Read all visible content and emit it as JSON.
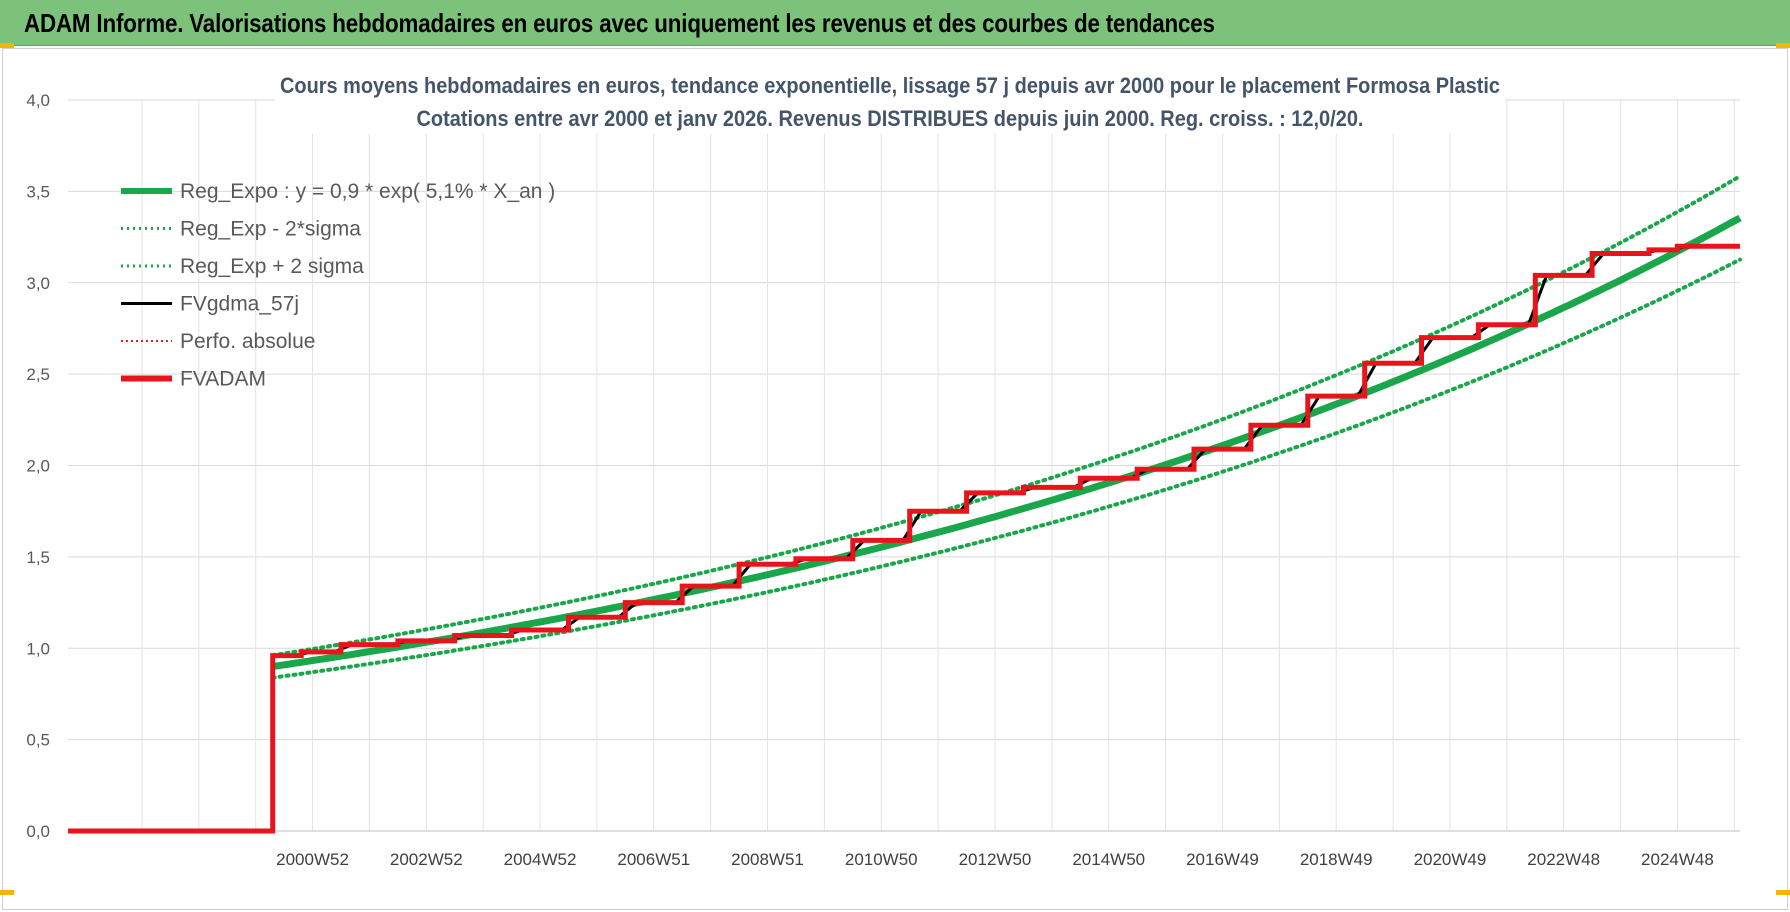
{
  "header": {
    "title": "ADAM Informe. Valorisations hebdomadaires en euros avec uniquement les revenus et des courbes de tendances"
  },
  "chart_data": {
    "type": "line",
    "title": "Cours moyens hebdomadaires en euros, tendance exponentielle, lissage 57 j depuis avr 2000 pour le placement Formosa Plastic",
    "subtitle": "Cotations entre avr 2000 et janv 2026. Revenus DISTRIBUES depuis juin 2000. Reg. croiss. : 12,0/20.",
    "xlabel": "",
    "ylabel": "",
    "ylim": [
      0,
      4
    ],
    "yticks": [
      "0,0",
      "0,5",
      "1,0",
      "1,5",
      "2,0",
      "2,5",
      "3,0",
      "3,5",
      "4,0"
    ],
    "xlim": [
      1996.7,
      2026.1
    ],
    "xticks": [
      {
        "label": "2000W52",
        "year": 2001.0
      },
      {
        "label": "2002W52",
        "year": 2003.0
      },
      {
        "label": "2004W52",
        "year": 2005.0
      },
      {
        "label": "2006W51",
        "year": 2007.0
      },
      {
        "label": "2008W51",
        "year": 2009.0
      },
      {
        "label": "2010W50",
        "year": 2011.0
      },
      {
        "label": "2012W50",
        "year": 2013.0
      },
      {
        "label": "2014W50",
        "year": 2015.0
      },
      {
        "label": "2016W49",
        "year": 2017.0
      },
      {
        "label": "2018W49",
        "year": 2019.0
      },
      {
        "label": "2020W49",
        "year": 2021.0
      },
      {
        "label": "2022W48",
        "year": 2023.0
      },
      {
        "label": "2024W48",
        "year": 2025.0
      }
    ],
    "grid": true,
    "legend_position": "top-left",
    "start_year": 2000.3,
    "end_year": 2026.1,
    "regression": {
      "a": 0.9,
      "rate": 0.051
    },
    "sigma_factor": 0.068,
    "series": [
      {
        "name": "Reg_Expo : y = 0,9 * exp( 5,1% *  X_an )",
        "style": "solid-thick",
        "color": "#1aa64a"
      },
      {
        "name": "Reg_Exp - 2*sigma",
        "style": "dotted",
        "color": "#1aa64a"
      },
      {
        "name": "Reg_Exp + 2 sigma",
        "style": "dotted",
        "color": "#1aa64a"
      },
      {
        "name": "FVgdma_57j",
        "style": "solid",
        "color": "#000000"
      },
      {
        "name": "Perfo. absolue",
        "style": "dotted",
        "color": "#e0201b"
      },
      {
        "name": "FVADAM",
        "style": "solid-thick",
        "color": "#e8141b"
      }
    ],
    "fvadam_steps": [
      {
        "year": 1996.7,
        "value": 0.0
      },
      {
        "year": 2000.3,
        "value": 0.96
      },
      {
        "year": 2000.8,
        "value": 0.98
      },
      {
        "year": 2001.5,
        "value": 1.02
      },
      {
        "year": 2002.5,
        "value": 1.04
      },
      {
        "year": 2003.5,
        "value": 1.07
      },
      {
        "year": 2004.5,
        "value": 1.1
      },
      {
        "year": 2005.5,
        "value": 1.17
      },
      {
        "year": 2006.5,
        "value": 1.25
      },
      {
        "year": 2007.5,
        "value": 1.34
      },
      {
        "year": 2008.5,
        "value": 1.46
      },
      {
        "year": 2009.5,
        "value": 1.49
      },
      {
        "year": 2010.5,
        "value": 1.59
      },
      {
        "year": 2011.5,
        "value": 1.75
      },
      {
        "year": 2012.5,
        "value": 1.85
      },
      {
        "year": 2013.5,
        "value": 1.88
      },
      {
        "year": 2014.5,
        "value": 1.93
      },
      {
        "year": 2015.5,
        "value": 1.98
      },
      {
        "year": 2016.5,
        "value": 2.09
      },
      {
        "year": 2017.5,
        "value": 2.22
      },
      {
        "year": 2018.5,
        "value": 2.38
      },
      {
        "year": 2019.5,
        "value": 2.56
      },
      {
        "year": 2020.5,
        "value": 2.7
      },
      {
        "year": 2021.5,
        "value": 2.77
      },
      {
        "year": 2022.5,
        "value": 3.04
      },
      {
        "year": 2023.5,
        "value": 3.16
      },
      {
        "year": 2024.5,
        "value": 3.18
      },
      {
        "year": 2025.0,
        "value": 3.2
      }
    ]
  }
}
